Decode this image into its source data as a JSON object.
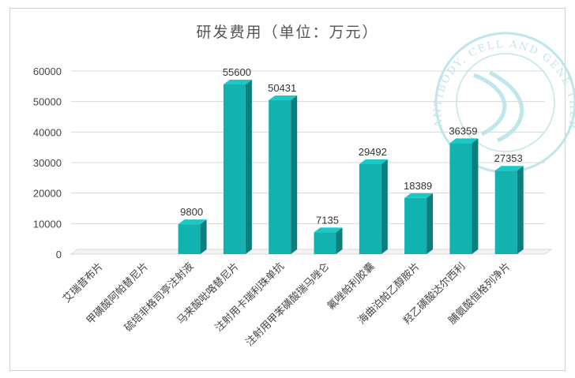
{
  "chart_data": {
    "type": "bar",
    "title": "研发费用（单位：万元）",
    "categories": [
      "艾瑞昔布片",
      "甲磺酸阿帕替尼片",
      "硫培非格司亭注射液",
      "马来酸吡咯替尼片",
      "注射用卡瑞利珠单抗",
      "注射用甲苯磺酸瑞马唑仑",
      "氟唑帕利胶囊",
      "海曲泊帕乙醇胺片",
      "羟乙磺酸达尔西利",
      "脯氨酸恒格列净片"
    ],
    "values": [
      null,
      null,
      9800,
      55600,
      50431,
      7135,
      29492,
      18389,
      36359,
      27353
    ],
    "ylim": [
      0,
      60000
    ],
    "yticks": [
      0,
      10000,
      20000,
      30000,
      40000,
      50000,
      60000
    ],
    "grid": true,
    "bar_style": "3d",
    "colors": {
      "bar_front": "#12B2B0",
      "bar_side": "#0B7F7E",
      "bar_top": "#19C9C6",
      "grid": "#d9d9d9"
    }
  },
  "watermark": {
    "text": "ANTIBODY, CELL AND GENE THERAPY",
    "color": "#bfe6ea"
  }
}
